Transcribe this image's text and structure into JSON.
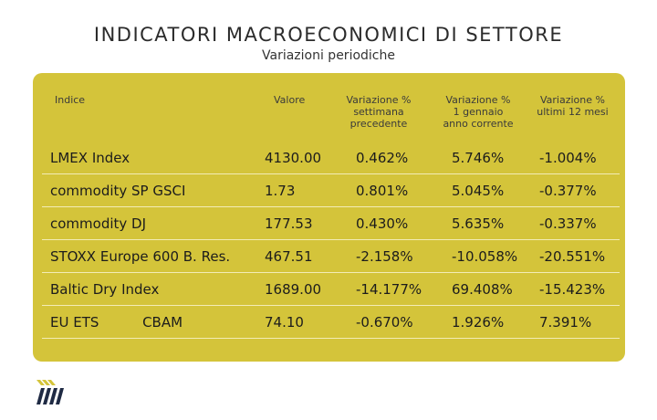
{
  "title": "INDICATORI MACROECONOMICI DI SETTORE",
  "subtitle": "Variazioni periodiche",
  "colors": {
    "card": "#d4c43a",
    "logo_navy": "#1f2a44",
    "logo_yellow": "#d4c43a"
  },
  "table": {
    "headers": {
      "indice": "Indice",
      "valore": "Valore",
      "var_week": [
        "Variazione %",
        "settimana",
        "precedente"
      ],
      "var_ytd": [
        "Variazione %",
        "1 gennaio",
        "anno corrente"
      ],
      "var_12m": [
        "Variazione %",
        "ultimi 12 mesi"
      ]
    },
    "rows": [
      {
        "name": "LMEX Index",
        "valore": "4130.00",
        "var_week": "0.462%",
        "var_ytd": "5.746%",
        "var_12m": "-1.004%"
      },
      {
        "name": "commodity SP GSCI",
        "valore": "1.73",
        "var_week": "0.801%",
        "var_ytd": "5.045%",
        "var_12m": "-0.377%"
      },
      {
        "name": "commodity DJ",
        "valore": "177.53",
        "var_week": "0.430%",
        "var_ytd": "5.635%",
        "var_12m": "-0.337%"
      },
      {
        "name": "STOXX Europe 600 B. Res.",
        "valore": "467.51",
        "var_week": "-2.158%",
        "var_ytd": "-10.058%",
        "var_12m": "-20.551%"
      },
      {
        "name": "Baltic Dry Index",
        "valore": "1689.00",
        "var_week": "-14.177%",
        "var_ytd": "69.408%",
        "var_12m": "-15.423%"
      },
      {
        "name": "EU ETS          CBAM",
        "valore": "74.10",
        "var_week": "-0.670%",
        "var_ytd": "1.926%",
        "var_12m": "7.391%"
      }
    ]
  }
}
